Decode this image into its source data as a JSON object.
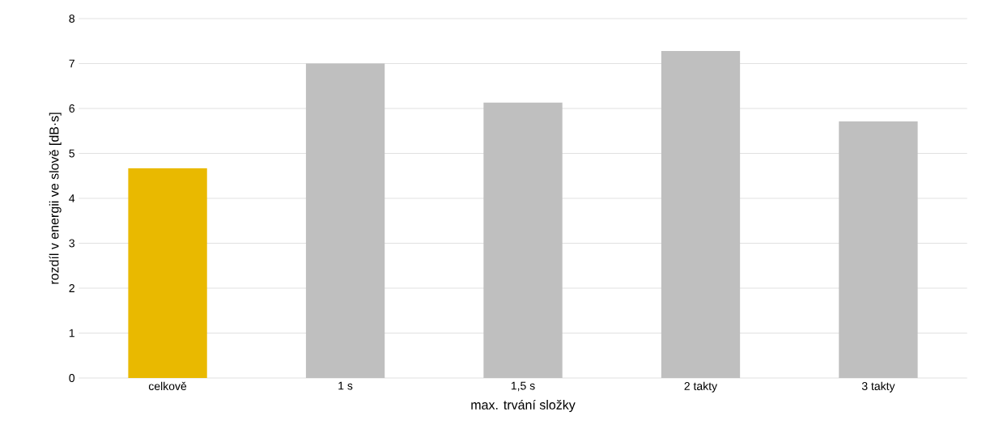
{
  "chart_data": {
    "type": "bar",
    "xlabel": "max. trvání složky",
    "ylabel": "rozdíl v energii ve slově [dB·s]",
    "categories": [
      "celkově",
      "1 s",
      "1,5 s",
      "2 takty",
      "3 takty"
    ],
    "values": [
      4.67,
      7.0,
      6.13,
      7.28,
      5.71
    ],
    "colors": [
      "#e9b900",
      "#bfbfbf",
      "#bfbfbf",
      "#bfbfbf",
      "#bfbfbf"
    ],
    "ylim": [
      0,
      8
    ],
    "yticks": [
      0,
      1,
      2,
      3,
      4,
      5,
      6,
      7,
      8
    ],
    "grid": "y"
  }
}
